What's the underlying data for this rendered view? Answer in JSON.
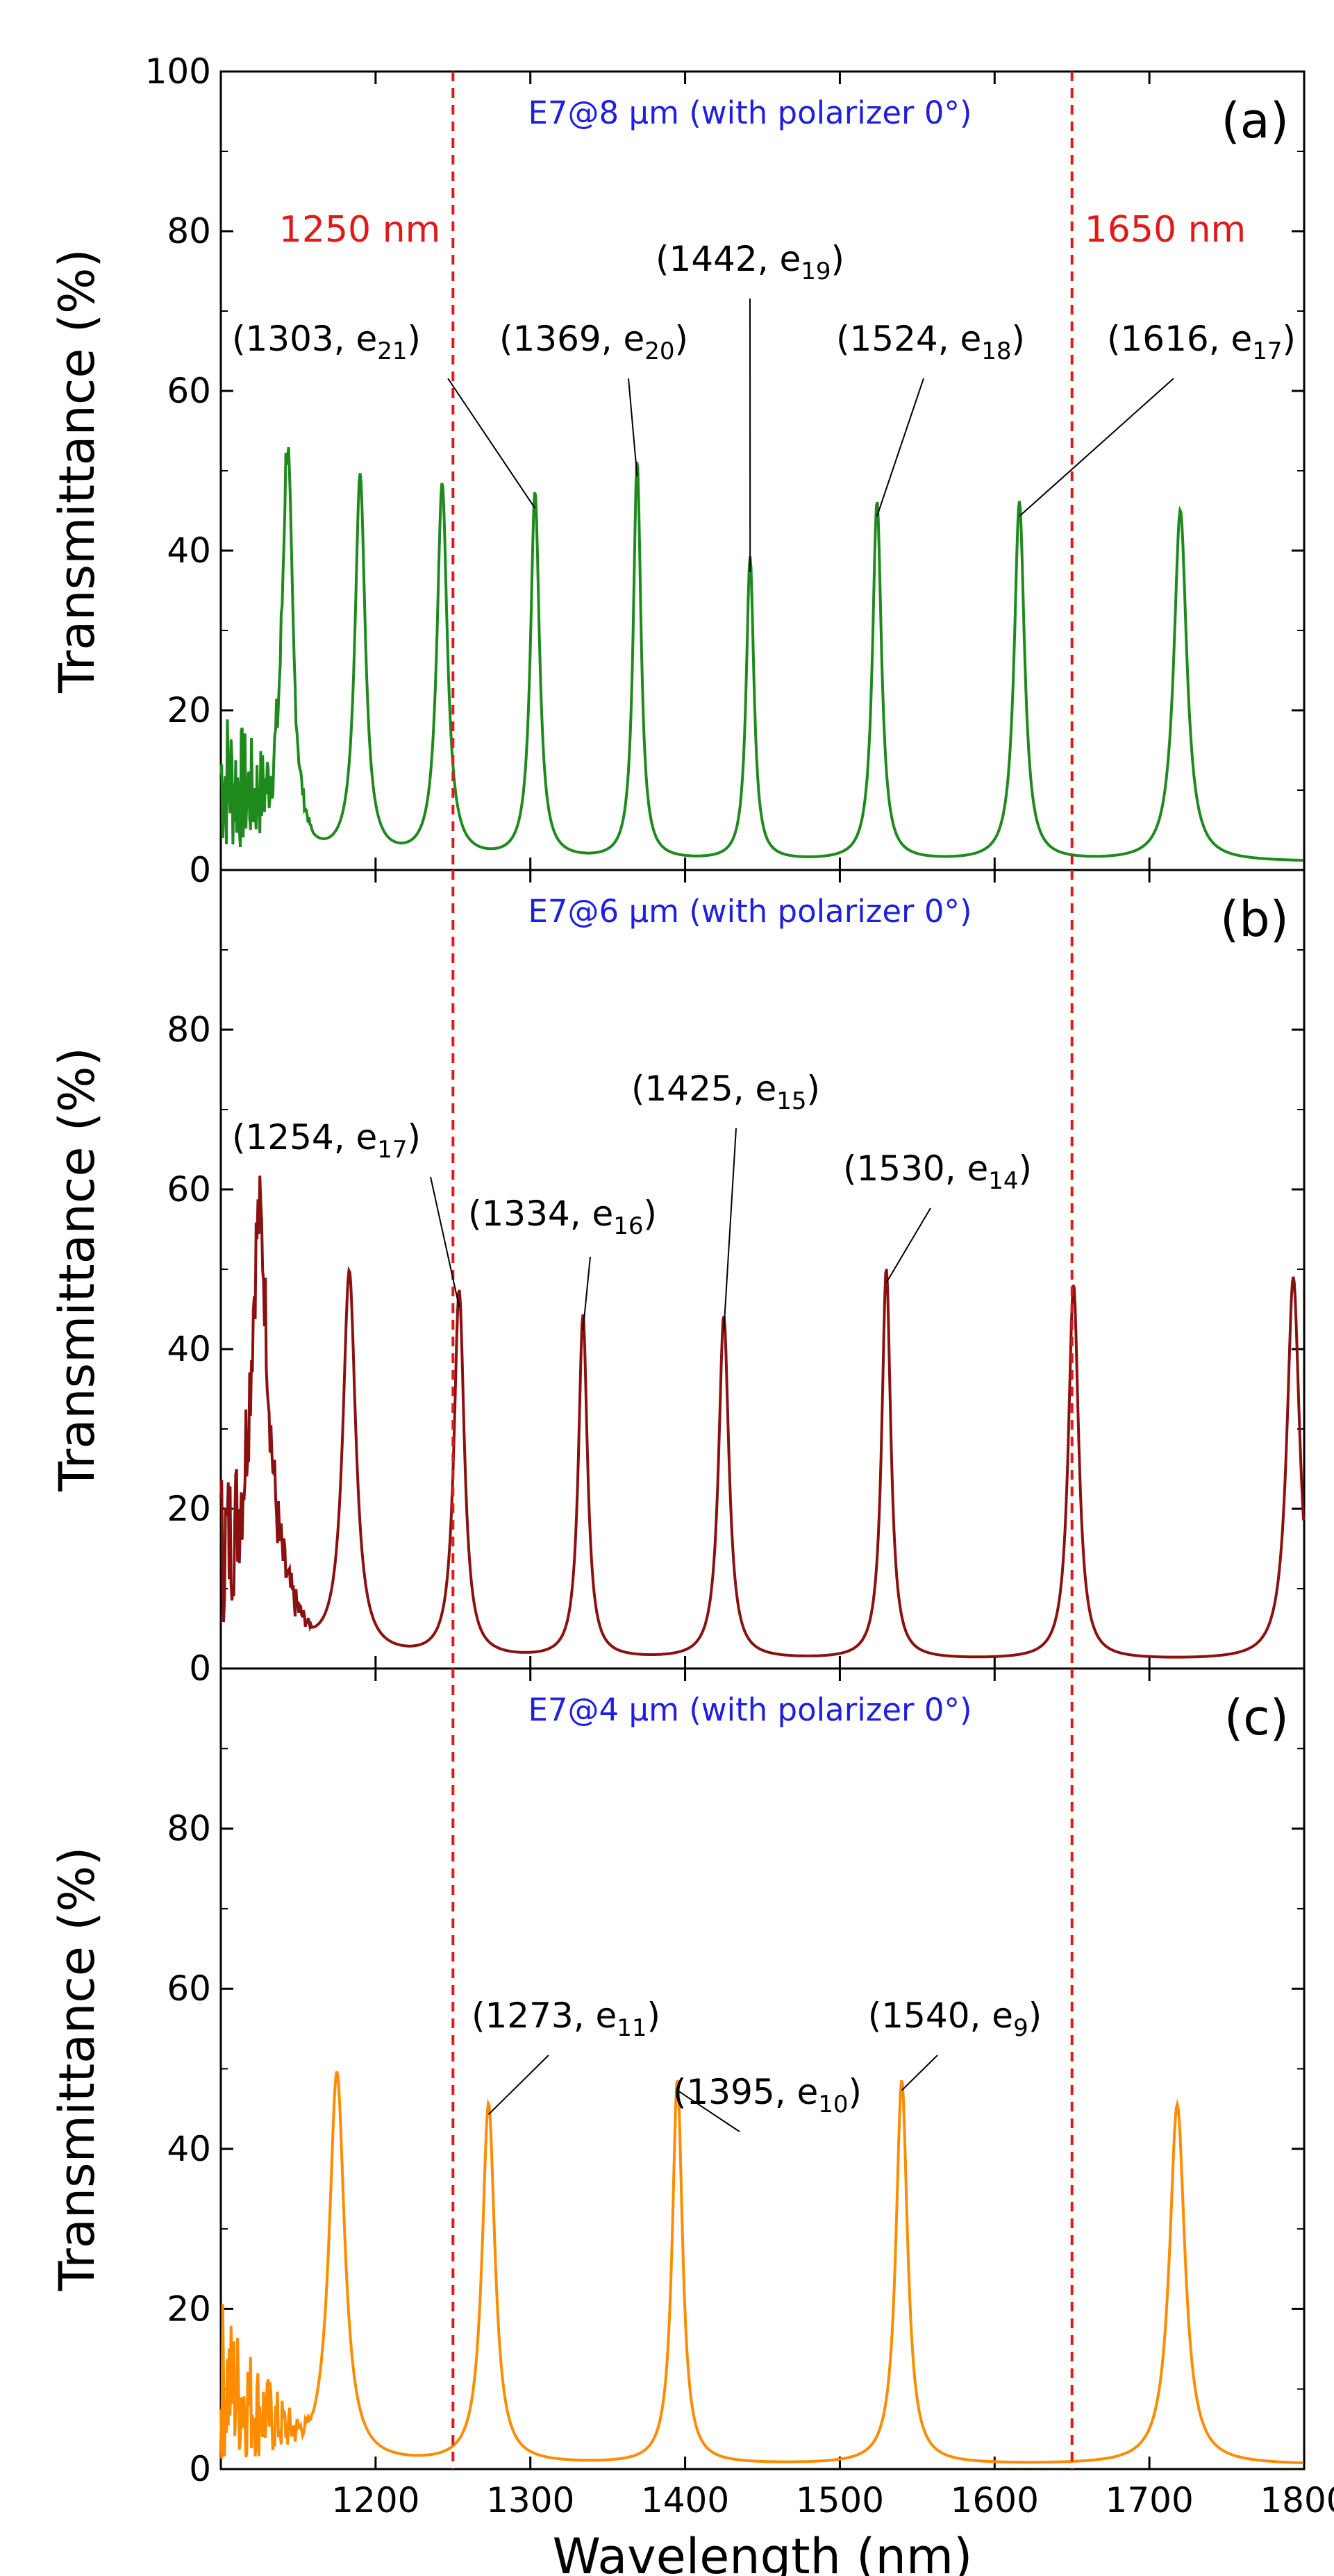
{
  "chart_data": [
    {
      "type": "line",
      "panel_label": "(a)",
      "title": "E7@8 μm (with polarizer 0°)",
      "title_color": "#1f1fe0",
      "line_color": "#1e8a1e",
      "xlim": [
        1100,
        1800
      ],
      "ylim": [
        0,
        100
      ],
      "ylabel": "Transmittance (%)",
      "yticks": [
        0,
        20,
        40,
        60,
        80,
        100
      ],
      "ytick_labels": [
        "0",
        "20",
        "40",
        "60",
        "80",
        "100"
      ],
      "reference_lines": [
        {
          "x": 1250,
          "label": "1250 nm"
        },
        {
          "x": 1650,
          "label": "1650 nm"
        }
      ],
      "reference_color": "#e01a1a",
      "peaks": [
        {
          "x": 1143,
          "y": 49,
          "w": 4
        },
        {
          "x": 1190,
          "y": 48,
          "w": 4
        },
        {
          "x": 1243,
          "y": 47,
          "w": 4
        },
        {
          "x": 1303,
          "y": 46,
          "w": 3.5
        },
        {
          "x": 1369,
          "y": 50,
          "w": 3
        },
        {
          "x": 1442,
          "y": 38,
          "w": 3
        },
        {
          "x": 1524,
          "y": 45,
          "w": 3.5
        },
        {
          "x": 1616,
          "y": 45,
          "w": 4
        },
        {
          "x": 1720,
          "y": 44,
          "w": 5
        }
      ],
      "baseline": 1.0,
      "annotations": [
        {
          "main": "(1303, e",
          "sub": "21",
          "close": ")",
          "x": 1303,
          "y": 46
        },
        {
          "main": "(1369, e",
          "sub": "20",
          "close": ")",
          "x": 1369,
          "y": 50
        },
        {
          "main": "(1442, e",
          "sub": "19",
          "close": ")",
          "x": 1442,
          "y": 38
        },
        {
          "main": "(1524, e",
          "sub": "18",
          "close": ")",
          "x": 1524,
          "y": 45
        },
        {
          "main": "(1616, e",
          "sub": "17",
          "close": ")",
          "x": 1616,
          "y": 45
        }
      ]
    },
    {
      "type": "line",
      "panel_label": "(b)",
      "title": "E7@6 μm (with polarizer 0°)",
      "title_color": "#1f1fe0",
      "line_color": "#8b1010",
      "xlim": [
        1100,
        1800
      ],
      "ylim": [
        0,
        100
      ],
      "ylabel": "Transmittance (%)",
      "yticks": [
        0,
        20,
        40,
        60,
        80
      ],
      "ytick_labels": [
        "0",
        "20",
        "40",
        "60",
        "80"
      ],
      "reference_lines": [
        {
          "x": 1250,
          "label": ""
        },
        {
          "x": 1650,
          "label": ""
        }
      ],
      "reference_color": "#e01a1a",
      "peaks": [
        {
          "x": 1125,
          "y": 49,
          "w": 7
        },
        {
          "x": 1183,
          "y": 48,
          "w": 5
        },
        {
          "x": 1254,
          "y": 46,
          "w": 4
        },
        {
          "x": 1334,
          "y": 43,
          "w": 3.5
        },
        {
          "x": 1425,
          "y": 43,
          "w": 4
        },
        {
          "x": 1530,
          "y": 49,
          "w": 3.5
        },
        {
          "x": 1651,
          "y": 47,
          "w": 4
        },
        {
          "x": 1793,
          "y": 48,
          "w": 5
        }
      ],
      "baseline": 1.0,
      "annotations": [
        {
          "main": "(1254, e",
          "sub": "17",
          "close": ")",
          "x": 1254,
          "y": 46
        },
        {
          "main": "(1334, e",
          "sub": "16",
          "close": ")",
          "x": 1334,
          "y": 43
        },
        {
          "main": "(1425, e",
          "sub": "15",
          "close": ")",
          "x": 1425,
          "y": 43
        },
        {
          "main": "(1530, e",
          "sub": "14",
          "close": ")",
          "x": 1530,
          "y": 49
        }
      ]
    },
    {
      "type": "line",
      "panel_label": "(c)",
      "title": "E7@4 μm (with polarizer 0°)",
      "title_color": "#1f1fe0",
      "line_color": "#ff8c00",
      "xlim": [
        1100,
        1800
      ],
      "ylim": [
        0,
        100
      ],
      "ylabel": "Transmittance (%)",
      "xlabel": "Wavelength (nm)",
      "xticks": [
        1200,
        1300,
        1400,
        1500,
        1600,
        1700,
        1800
      ],
      "xtick_labels": [
        "1200",
        "1300",
        "1400",
        "1500",
        "1600",
        "1700",
        "1800"
      ],
      "yticks": [
        0,
        20,
        40,
        60,
        80
      ],
      "ytick_labels": [
        "0",
        "20",
        "40",
        "60",
        "80"
      ],
      "reference_lines": [
        {
          "x": 1250,
          "label": ""
        },
        {
          "x": 1650,
          "label": ""
        }
      ],
      "reference_color": "#e01a1a",
      "peaks": [
        {
          "x": 1175,
          "y": 49,
          "w": 6
        },
        {
          "x": 1273,
          "y": 45,
          "w": 5
        },
        {
          "x": 1395,
          "y": 48,
          "w": 4
        },
        {
          "x": 1540,
          "y": 48,
          "w": 4.5
        },
        {
          "x": 1718,
          "y": 45,
          "w": 6
        }
      ],
      "baseline": 0.5,
      "annotations": [
        {
          "main": "(1273, e",
          "sub": "11",
          "close": ")",
          "x": 1273,
          "y": 45
        },
        {
          "main": "(1395, e",
          "sub": "10",
          "close": ")",
          "x": 1395,
          "y": 48
        },
        {
          "main": "(1540, e",
          "sub": "9",
          "close": ")",
          "x": 1540,
          "y": 48
        }
      ]
    }
  ]
}
